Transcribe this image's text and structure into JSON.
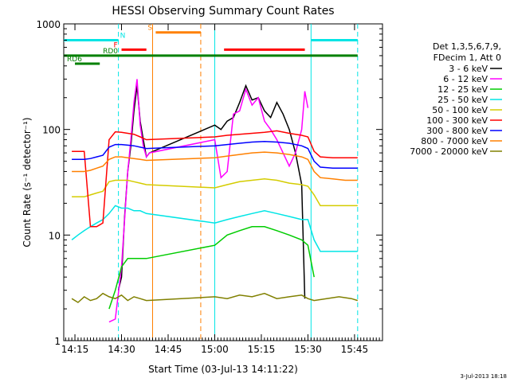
{
  "chart_data": {
    "type": "line",
    "title": "HESSI Observing Summary Count Rates",
    "xlabel": "Start Time (03-Jul-13 14:11:22)",
    "ylabel": "Count Rate (s⁻¹ detector⁻¹)",
    "yscale": "log",
    "ylim": [
      1,
      1000
    ],
    "xlim_minutes": [
      11.4,
      114
    ],
    "x_ticks": [
      {
        "label": "14:15",
        "min": 15
      },
      {
        "label": "14:30",
        "min": 30
      },
      {
        "label": "14:45",
        "min": 45
      },
      {
        "label": "15:00",
        "min": 60
      },
      {
        "label": "15:15",
        "min": 75
      },
      {
        "label": "15:30",
        "min": 90
      },
      {
        "label": "15:45",
        "min": 105
      }
    ],
    "y_ticks": [
      {
        "label": "1",
        "v": 1
      },
      {
        "label": "10",
        "v": 10
      },
      {
        "label": "100",
        "v": 100
      },
      {
        "label": "1000",
        "v": 1000
      }
    ],
    "legend": {
      "header": [
        "Det 1,3,5,6,7,9,",
        "FDecim 1, Att 0"
      ],
      "placement": "right"
    },
    "series": [
      {
        "name": "3 - 6 keV",
        "color": "#000000",
        "points": [
          [
            29,
            3
          ],
          [
            30,
            4
          ],
          [
            31,
            15
          ],
          [
            32,
            40
          ],
          [
            33,
            70
          ],
          [
            34,
            150
          ],
          [
            35,
            260
          ],
          [
            36,
            120
          ],
          [
            37,
            80
          ],
          [
            38,
            55
          ],
          [
            39,
            60
          ],
          [
            60,
            110
          ],
          [
            62,
            100
          ],
          [
            64,
            120
          ],
          [
            66,
            130
          ],
          [
            68,
            180
          ],
          [
            70,
            260
          ],
          [
            72,
            190
          ],
          [
            74,
            200
          ],
          [
            76,
            150
          ],
          [
            78,
            130
          ],
          [
            80,
            180
          ],
          [
            82,
            140
          ],
          [
            84,
            100
          ],
          [
            86,
            60
          ],
          [
            88,
            30
          ],
          [
            89,
            2.5
          ]
        ]
      },
      {
        "name": "6 - 12 keV",
        "color": "#ff00ff",
        "points": [
          [
            26,
            1.5
          ],
          [
            28,
            1.6
          ],
          [
            30,
            5
          ],
          [
            32,
            40
          ],
          [
            33,
            80
          ],
          [
            34,
            180
          ],
          [
            35,
            300
          ],
          [
            36,
            110
          ],
          [
            37,
            70
          ],
          [
            38,
            55
          ],
          [
            39,
            60
          ],
          [
            60,
            80
          ],
          [
            62,
            35
          ],
          [
            64,
            40
          ],
          [
            66,
            140
          ],
          [
            68,
            150
          ],
          [
            70,
            240
          ],
          [
            72,
            170
          ],
          [
            74,
            200
          ],
          [
            76,
            120
          ],
          [
            78,
            100
          ],
          [
            80,
            80
          ],
          [
            82,
            60
          ],
          [
            84,
            45
          ],
          [
            86,
            60
          ],
          [
            88,
            100
          ],
          [
            89,
            230
          ],
          [
            90,
            160
          ]
        ]
      },
      {
        "name": "12 - 25 keV",
        "color": "#00cc00",
        "points": [
          [
            26,
            2
          ],
          [
            28,
            3
          ],
          [
            30,
            5
          ],
          [
            32,
            6
          ],
          [
            34,
            6
          ],
          [
            36,
            6
          ],
          [
            38,
            6
          ],
          [
            60,
            8
          ],
          [
            64,
            10
          ],
          [
            68,
            11
          ],
          [
            72,
            12
          ],
          [
            76,
            12
          ],
          [
            80,
            11
          ],
          [
            84,
            10
          ],
          [
            88,
            9
          ],
          [
            90,
            8
          ],
          [
            92,
            4
          ]
        ]
      },
      {
        "name": "25 - 50 keV",
        "color": "#00e5e5",
        "points": [
          [
            14,
            9
          ],
          [
            16,
            10
          ],
          [
            18,
            11
          ],
          [
            20,
            12
          ],
          [
            22,
            13
          ],
          [
            24,
            14
          ],
          [
            26,
            16
          ],
          [
            28,
            19
          ],
          [
            30,
            18
          ],
          [
            32,
            18
          ],
          [
            34,
            17
          ],
          [
            36,
            17
          ],
          [
            38,
            16
          ],
          [
            60,
            13
          ],
          [
            64,
            14
          ],
          [
            68,
            15
          ],
          [
            72,
            16
          ],
          [
            76,
            17
          ],
          [
            80,
            16
          ],
          [
            84,
            15
          ],
          [
            88,
            14
          ],
          [
            90,
            14
          ],
          [
            92,
            9
          ],
          [
            94,
            7
          ],
          [
            98,
            7
          ],
          [
            102,
            7
          ],
          [
            106,
            7
          ]
        ]
      },
      {
        "name": "50 - 100 keV",
        "color": "#d4cc00",
        "points": [
          [
            14,
            23
          ],
          [
            16,
            23
          ],
          [
            18,
            23
          ],
          [
            20,
            24
          ],
          [
            22,
            25
          ],
          [
            24,
            26
          ],
          [
            26,
            32
          ],
          [
            28,
            33
          ],
          [
            30,
            33
          ],
          [
            32,
            33
          ],
          [
            34,
            32
          ],
          [
            36,
            31
          ],
          [
            38,
            30
          ],
          [
            60,
            28
          ],
          [
            64,
            30
          ],
          [
            68,
            32
          ],
          [
            72,
            33
          ],
          [
            76,
            34
          ],
          [
            80,
            33
          ],
          [
            84,
            31
          ],
          [
            88,
            30
          ],
          [
            90,
            29
          ],
          [
            92,
            24
          ],
          [
            94,
            19
          ],
          [
            98,
            19
          ],
          [
            102,
            19
          ],
          [
            106,
            19
          ]
        ]
      },
      {
        "name": "100 - 300 keV",
        "color": "#ff0000",
        "points": [
          [
            14,
            62
          ],
          [
            16,
            62
          ],
          [
            18,
            62
          ],
          [
            20,
            12
          ],
          [
            22,
            12
          ],
          [
            24,
            13
          ],
          [
            26,
            80
          ],
          [
            28,
            95
          ],
          [
            30,
            94
          ],
          [
            32,
            92
          ],
          [
            34,
            90
          ],
          [
            36,
            85
          ],
          [
            38,
            80
          ],
          [
            60,
            85
          ],
          [
            64,
            88
          ],
          [
            68,
            90
          ],
          [
            72,
            92
          ],
          [
            76,
            94
          ],
          [
            80,
            97
          ],
          [
            84,
            92
          ],
          [
            88,
            88
          ],
          [
            90,
            85
          ],
          [
            92,
            62
          ],
          [
            94,
            55
          ],
          [
            98,
            54
          ],
          [
            102,
            54
          ],
          [
            106,
            54
          ]
        ]
      },
      {
        "name": "300 - 800 keV",
        "color": "#0000ff",
        "points": [
          [
            14,
            52
          ],
          [
            16,
            52
          ],
          [
            18,
            52
          ],
          [
            20,
            53
          ],
          [
            22,
            55
          ],
          [
            24,
            57
          ],
          [
            26,
            68
          ],
          [
            28,
            72
          ],
          [
            30,
            72
          ],
          [
            32,
            71
          ],
          [
            34,
            70
          ],
          [
            36,
            68
          ],
          [
            38,
            66
          ],
          [
            60,
            70
          ],
          [
            64,
            72
          ],
          [
            68,
            74
          ],
          [
            72,
            76
          ],
          [
            76,
            77
          ],
          [
            80,
            76
          ],
          [
            84,
            74
          ],
          [
            88,
            70
          ],
          [
            90,
            66
          ],
          [
            92,
            50
          ],
          [
            94,
            44
          ],
          [
            98,
            43
          ],
          [
            102,
            43
          ],
          [
            106,
            43
          ]
        ]
      },
      {
        "name": "800 - 7000 keV",
        "color": "#ff8000",
        "points": [
          [
            14,
            40
          ],
          [
            16,
            40
          ],
          [
            18,
            40
          ],
          [
            20,
            41
          ],
          [
            22,
            43
          ],
          [
            24,
            45
          ],
          [
            26,
            52
          ],
          [
            28,
            55
          ],
          [
            30,
            55
          ],
          [
            32,
            54
          ],
          [
            34,
            53
          ],
          [
            36,
            52
          ],
          [
            38,
            51
          ],
          [
            60,
            54
          ],
          [
            64,
            56
          ],
          [
            68,
            58
          ],
          [
            72,
            60
          ],
          [
            76,
            61
          ],
          [
            80,
            60
          ],
          [
            84,
            58
          ],
          [
            88,
            55
          ],
          [
            90,
            52
          ],
          [
            92,
            40
          ],
          [
            94,
            35
          ],
          [
            98,
            34
          ],
          [
            102,
            33
          ],
          [
            106,
            33
          ]
        ]
      },
      {
        "name": "7000 - 20000 keV",
        "color": "#808000",
        "points": [
          [
            14,
            2.5
          ],
          [
            16,
            2.3
          ],
          [
            18,
            2.6
          ],
          [
            20,
            2.4
          ],
          [
            22,
            2.5
          ],
          [
            24,
            2.8
          ],
          [
            26,
            2.6
          ],
          [
            28,
            2.5
          ],
          [
            30,
            2.7
          ],
          [
            32,
            2.4
          ],
          [
            34,
            2.6
          ],
          [
            36,
            2.5
          ],
          [
            38,
            2.4
          ],
          [
            60,
            2.6
          ],
          [
            64,
            2.5
          ],
          [
            68,
            2.7
          ],
          [
            72,
            2.6
          ],
          [
            76,
            2.8
          ],
          [
            80,
            2.5
          ],
          [
            84,
            2.6
          ],
          [
            88,
            2.7
          ],
          [
            90,
            2.5
          ],
          [
            92,
            2.4
          ],
          [
            96,
            2.5
          ],
          [
            100,
            2.6
          ],
          [
            104,
            2.5
          ],
          [
            106,
            2.4
          ]
        ]
      }
    ],
    "flag_bars": [
      {
        "label": "N",
        "color": "#00e5e5",
        "from": 11.4,
        "to": 29,
        "level": 700
      },
      {
        "label": "",
        "color": "#00e5e5",
        "from": 91,
        "to": 106,
        "level": 700
      },
      {
        "label": "F",
        "color": "#ff0000",
        "from": 30,
        "to": 38,
        "level": 570
      },
      {
        "label": "S",
        "color": "#ff8000",
        "from": 41,
        "to": 55.5,
        "level": 830
      },
      {
        "label": "",
        "color": "#ff0000",
        "from": 63,
        "to": 89,
        "level": 570
      },
      {
        "label": "RD0",
        "color": "#008000",
        "from": 11.4,
        "to": 106,
        "level": 500
      },
      {
        "label": "RD6",
        "color": "#008000",
        "from": 15,
        "to": 23,
        "level": 420
      }
    ],
    "vlines": [
      {
        "min": 29,
        "color": "#00e5e5",
        "style": "dashed"
      },
      {
        "min": 40,
        "color": "#ff8000",
        "style": "solid"
      },
      {
        "min": 55.5,
        "color": "#ff8000",
        "style": "dashed"
      },
      {
        "min": 60,
        "color": "#00e5e5",
        "style": "solid"
      },
      {
        "min": 91,
        "color": "#00e5e5",
        "style": "solid"
      },
      {
        "min": 106,
        "color": "#00e5e5",
        "style": "dashed"
      }
    ],
    "footer": "3-Jul-2013 18:18"
  }
}
